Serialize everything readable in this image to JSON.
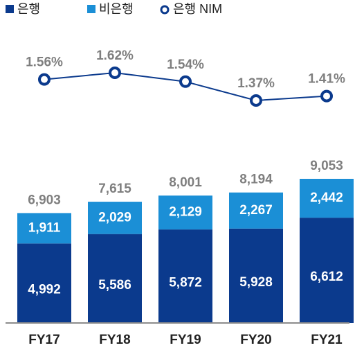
{
  "chart_data": {
    "type": "bar",
    "categories": [
      "FY17",
      "FY18",
      "FY19",
      "FY20",
      "FY21"
    ],
    "stacked": true,
    "series": [
      {
        "name": "은행",
        "color": "#0b3a8d",
        "values": [
          4992,
          5586,
          5872,
          5928,
          6612
        ],
        "value_labels": [
          "4,992",
          "5,586",
          "5,872",
          "5,928",
          "6,612"
        ]
      },
      {
        "name": "비은행",
        "color": "#1b8fd6",
        "values": [
          1911,
          2029,
          2129,
          2267,
          2442
        ],
        "value_labels": [
          "1,911",
          "2,029",
          "2,129",
          "2,267",
          "2,442"
        ]
      }
    ],
    "totals": {
      "values": [
        6903,
        7615,
        8001,
        8194,
        9053
      ],
      "value_labels": [
        "6,903",
        "7,615",
        "8,001",
        "8,194",
        "9,053"
      ]
    },
    "line": {
      "type": "line",
      "name": "은행 NIM",
      "color": "#0b3a8d",
      "values": [
        1.56,
        1.62,
        1.54,
        1.37,
        1.41
      ],
      "value_labels": [
        "1.56%",
        "1.62%",
        "1.54%",
        "1.37%",
        "1.41%"
      ]
    }
  }
}
